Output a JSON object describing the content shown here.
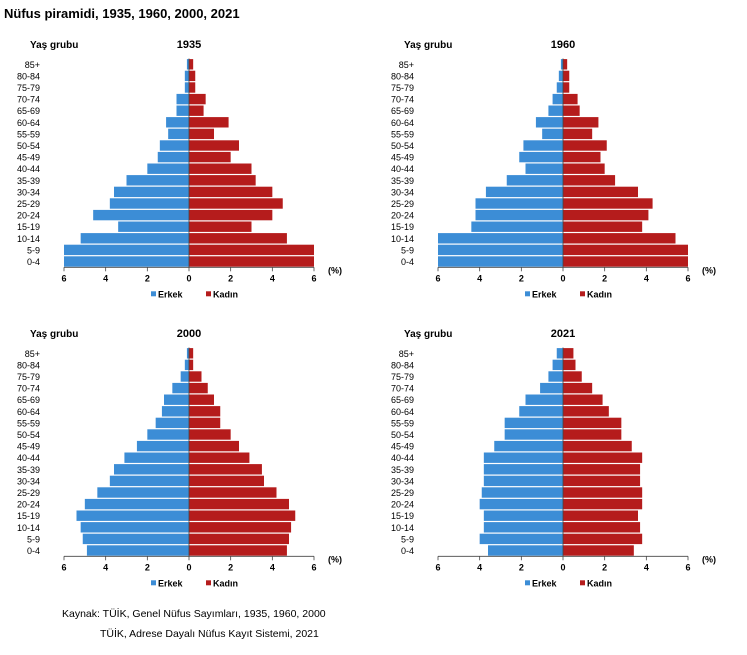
{
  "title": "Nüfus piramidi, 1935, 1960, 2000, 2021",
  "source_line1": "Kaynak: TÜİK, Genel Nüfus Sayımları, 1935, 1960, 2000",
  "source_line2": "TÜİK, Adrese Dayalı Nüfus Kayıt Sistemi, 2021",
  "colors": {
    "male": "#3c8dd6",
    "female": "#b51c1c"
  },
  "chart_data": [
    {
      "type": "bar",
      "title": "1935",
      "ylabel": "Yaş grubu",
      "xlabel": "(%)",
      "xlim": [
        -6,
        6
      ],
      "tick_labels": [
        "6",
        "4",
        "2",
        "0",
        "2",
        "4",
        "6"
      ],
      "categories": [
        "85+",
        "80-84",
        "75-79",
        "70-74",
        "65-69",
        "60-64",
        "55-59",
        "50-54",
        "45-49",
        "40-44",
        "35-39",
        "30-34",
        "25-29",
        "20-24",
        "15-19",
        "10-14",
        "5-9",
        "0-4"
      ],
      "series": [
        {
          "name": "Erkek",
          "values": [
            0.1,
            0.2,
            0.2,
            0.6,
            0.6,
            1.1,
            1.0,
            1.4,
            1.5,
            2.0,
            3.0,
            3.6,
            3.8,
            4.6,
            3.4,
            5.2,
            6.0,
            6.0
          ]
        },
        {
          "name": "Kadın",
          "values": [
            0.2,
            0.3,
            0.3,
            0.8,
            0.7,
            1.9,
            1.2,
            2.4,
            2.0,
            3.0,
            3.2,
            4.0,
            4.5,
            4.0,
            3.0,
            4.7,
            6.0,
            6.0
          ]
        }
      ],
      "legend": "bottom"
    },
    {
      "type": "bar",
      "title": "1960",
      "ylabel": "Yaş grubu",
      "xlabel": "(%)",
      "xlim": [
        -6,
        6
      ],
      "tick_labels": [
        "6",
        "4",
        "2",
        "0",
        "2",
        "4",
        "6"
      ],
      "categories": [
        "85+",
        "80-84",
        "75-79",
        "70-74",
        "65-69",
        "60-64",
        "55-59",
        "50-54",
        "45-49",
        "40-44",
        "35-39",
        "30-34",
        "25-29",
        "20-24",
        "15-19",
        "10-14",
        "5-9",
        "0-4"
      ],
      "series": [
        {
          "name": "Erkek",
          "values": [
            0.1,
            0.2,
            0.3,
            0.5,
            0.7,
            1.3,
            1.0,
            1.9,
            2.1,
            1.8,
            2.7,
            3.7,
            4.2,
            4.2,
            4.4,
            6.0,
            6.0,
            6.0
          ]
        },
        {
          "name": "Kadın",
          "values": [
            0.2,
            0.3,
            0.3,
            0.7,
            0.8,
            1.7,
            1.4,
            2.1,
            1.8,
            2.0,
            2.5,
            3.6,
            4.3,
            4.1,
            3.8,
            5.4,
            6.0,
            6.0
          ]
        }
      ],
      "legend": "bottom"
    },
    {
      "type": "bar",
      "title": "2000",
      "ylabel": "Yaş grubu",
      "xlabel": "(%)",
      "xlim": [
        -6,
        6
      ],
      "tick_labels": [
        "6",
        "4",
        "2",
        "0",
        "2",
        "4",
        "6"
      ],
      "categories": [
        "85+",
        "80-84",
        "75-79",
        "70-74",
        "65-69",
        "60-64",
        "55-59",
        "50-54",
        "45-49",
        "40-44",
        "35-39",
        "30-34",
        "25-29",
        "20-24",
        "15-19",
        "10-14",
        "5-9",
        "0-4"
      ],
      "series": [
        {
          "name": "Erkek",
          "values": [
            0.1,
            0.2,
            0.4,
            0.8,
            1.2,
            1.3,
            1.6,
            2.0,
            2.5,
            3.1,
            3.6,
            3.8,
            4.4,
            5.0,
            5.4,
            5.2,
            5.1,
            4.9
          ]
        },
        {
          "name": "Kadın",
          "values": [
            0.2,
            0.2,
            0.6,
            0.9,
            1.2,
            1.5,
            1.5,
            2.0,
            2.4,
            2.9,
            3.5,
            3.6,
            4.2,
            4.8,
            5.1,
            4.9,
            4.8,
            4.7
          ]
        }
      ],
      "legend": "bottom"
    },
    {
      "type": "bar",
      "title": "2021",
      "ylabel": "Yaş grubu",
      "xlabel": "(%)",
      "xlim": [
        -6,
        6
      ],
      "tick_labels": [
        "6",
        "4",
        "2",
        "0",
        "2",
        "4",
        "6"
      ],
      "categories": [
        "85+",
        "80-84",
        "75-79",
        "70-74",
        "65-69",
        "60-64",
        "55-59",
        "50-54",
        "45-49",
        "40-44",
        "35-39",
        "30-34",
        "25-29",
        "20-24",
        "15-19",
        "10-14",
        "5-9",
        "0-4"
      ],
      "series": [
        {
          "name": "Erkek",
          "values": [
            0.3,
            0.5,
            0.7,
            1.1,
            1.8,
            2.1,
            2.8,
            2.8,
            3.3,
            3.8,
            3.8,
            3.8,
            3.9,
            4.0,
            3.8,
            3.8,
            4.0,
            3.6
          ]
        },
        {
          "name": "Kadın",
          "values": [
            0.5,
            0.6,
            0.9,
            1.4,
            1.9,
            2.2,
            2.8,
            2.8,
            3.3,
            3.8,
            3.7,
            3.7,
            3.8,
            3.8,
            3.6,
            3.7,
            3.8,
            3.4
          ]
        }
      ],
      "legend": "bottom"
    }
  ]
}
